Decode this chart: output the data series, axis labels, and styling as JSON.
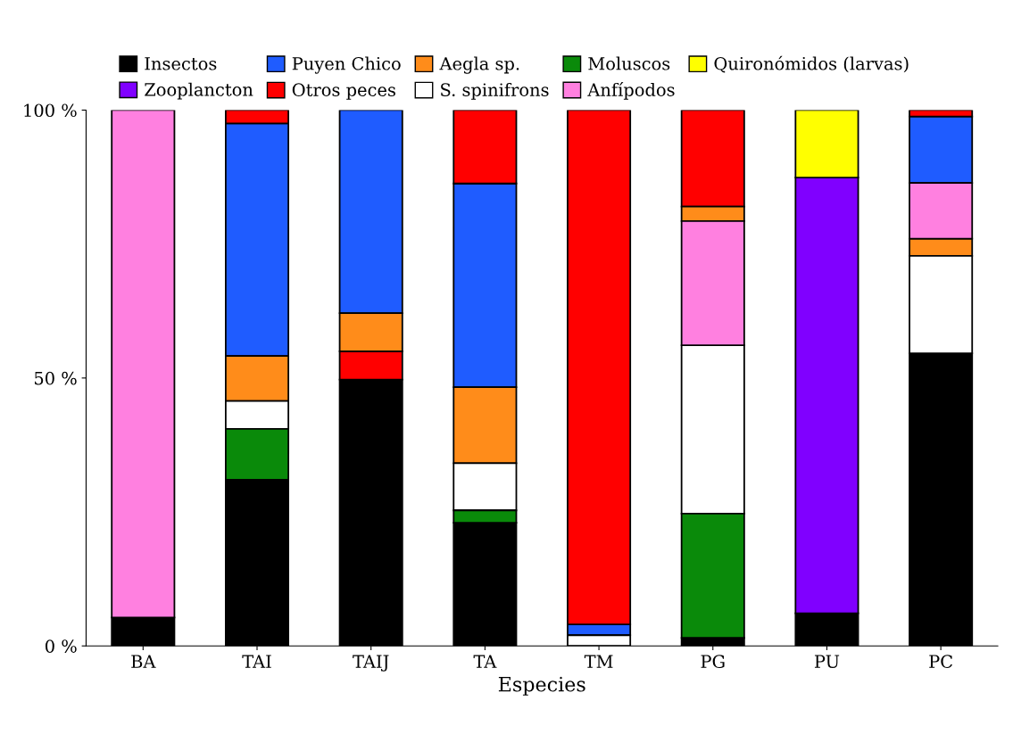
{
  "chart_data": {
    "type": "bar",
    "xlabel": "Especies",
    "categories": [
      "BA",
      "TAI",
      "TAIJ",
      "TA",
      "TM",
      "PG",
      "PU",
      "PC"
    ],
    "ylim": [
      0,
      100
    ],
    "yticks": [
      {
        "value": 0,
        "label": "0 %"
      },
      {
        "value": 50,
        "label": "50 %"
      },
      {
        "value": 100,
        "label": "100 %"
      }
    ],
    "legend": "top",
    "grid": false,
    "series": [
      {
        "name": "Insectos",
        "color": "#000000",
        "values": [
          5.3,
          31,
          49.7,
          23,
          null,
          1.5,
          6.1,
          54.6
        ],
        "base": [
          0,
          0,
          0,
          0,
          null,
          0,
          0,
          0
        ]
      },
      {
        "name": "Zooplancton",
        "color": "#8000ff",
        "values": [
          null,
          null,
          null,
          null,
          null,
          null,
          81.3,
          null
        ],
        "base": [
          null,
          null,
          null,
          null,
          null,
          null,
          6.1,
          null
        ]
      },
      {
        "name": "Puyen Chico",
        "color": "#1f5cff",
        "values": [
          null,
          43.4,
          37.9,
          38,
          2,
          null,
          null,
          12.4
        ],
        "base": [
          null,
          54.1,
          62.1,
          48.3,
          2,
          null,
          null,
          86.4
        ]
      },
      {
        "name": "Otros peces",
        "color": "#ff0000",
        "values": [
          null,
          2.5,
          5.3,
          13.7,
          96,
          18,
          null,
          1.2
        ],
        "base": [
          null,
          97.5,
          49.7,
          86.3,
          4,
          82,
          null,
          98.8
        ]
      },
      {
        "name": "Aegla sp.",
        "color": "#ff8c1a",
        "values": [
          null,
          8.4,
          7.1,
          14.2,
          null,
          2.7,
          null,
          3.2
        ],
        "base": [
          null,
          45.7,
          55,
          34.1,
          null,
          79.3,
          null,
          72.8
        ]
      },
      {
        "name": "S. spinifrons",
        "color": "#ffffff",
        "values": [
          null,
          5.2,
          null,
          8.8,
          2,
          31.4,
          null,
          18.2
        ],
        "base": [
          null,
          40.5,
          null,
          25.3,
          0,
          24.7,
          null,
          54.6
        ]
      },
      {
        "name": "Moluscos",
        "color": "#0a8a0a",
        "values": [
          null,
          9.5,
          null,
          2.3,
          null,
          23.2,
          null,
          null
        ],
        "base": [
          null,
          31,
          null,
          23,
          null,
          1.5,
          null,
          null
        ]
      },
      {
        "name": "Anfípodos",
        "color": "#ff80e0",
        "values": [
          94.7,
          null,
          null,
          null,
          null,
          23.2,
          null,
          10.4
        ],
        "base": [
          5.3,
          null,
          null,
          null,
          null,
          56.1,
          null,
          76
        ]
      },
      {
        "name": "Quironómidos (larvas)",
        "color": "#ffff00",
        "values": [
          null,
          null,
          null,
          null,
          null,
          null,
          12.6,
          null
        ],
        "base": [
          null,
          null,
          null,
          null,
          null,
          null,
          87.4,
          null
        ]
      }
    ]
  }
}
